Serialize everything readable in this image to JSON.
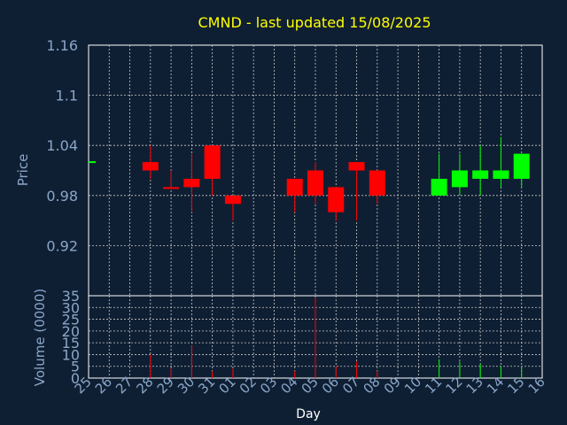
{
  "chart_data": {
    "type": "candlestick",
    "title": "CMND - last updated 15/08/2025",
    "xlabel": "Day",
    "ylabel": "Price",
    "ylabel2": "Volume (0000)",
    "grid": true,
    "ylim": [
      0.86,
      1.16
    ],
    "yticks": [
      "1.16",
      "1.1",
      "1.04",
      "0.98",
      "0.92"
    ],
    "ylim2": [
      0,
      35
    ],
    "yticks2": [
      "35",
      "30",
      "25",
      "20",
      "15",
      "10",
      "5",
      "0"
    ],
    "x": [
      "25",
      "26",
      "27",
      "28",
      "29",
      "30",
      "31",
      "01",
      "02",
      "03",
      "04",
      "05",
      "06",
      "07",
      "08",
      "09",
      "10",
      "11",
      "12",
      "13",
      "14",
      "15",
      "16"
    ],
    "candles": [
      {
        "day": "25",
        "open": 1.02,
        "high": 1.02,
        "low": 1.02,
        "close": 1.02,
        "volume": 0,
        "color": "flat"
      },
      {
        "day": "28",
        "open": 1.02,
        "high": 1.04,
        "low": 1.0,
        "close": 1.01,
        "volume": 10,
        "color": "down"
      },
      {
        "day": "29",
        "open": 0.99,
        "high": 1.01,
        "low": 0.99,
        "close": 0.99,
        "volume": 4,
        "color": "down"
      },
      {
        "day": "30",
        "open": 1.0,
        "high": 1.03,
        "low": 0.96,
        "close": 0.99,
        "volume": 14,
        "color": "down"
      },
      {
        "day": "31",
        "open": 1.04,
        "high": 1.04,
        "low": 0.98,
        "close": 1.0,
        "volume": 3,
        "color": "down"
      },
      {
        "day": "01",
        "open": 0.98,
        "high": 0.98,
        "low": 0.95,
        "close": 0.97,
        "volume": 4,
        "color": "down"
      },
      {
        "day": "04",
        "open": 1.0,
        "high": 1.0,
        "low": 0.96,
        "close": 0.98,
        "volume": 3,
        "color": "down"
      },
      {
        "day": "05",
        "open": 1.01,
        "high": 1.02,
        "low": 0.97,
        "close": 0.98,
        "volume": 34,
        "color": "down"
      },
      {
        "day": "06",
        "open": 0.99,
        "high": 0.99,
        "low": 0.95,
        "close": 0.96,
        "volume": 5,
        "color": "down"
      },
      {
        "day": "07",
        "open": 1.02,
        "high": 1.02,
        "low": 0.95,
        "close": 1.01,
        "volume": 7,
        "color": "down"
      },
      {
        "day": "08",
        "open": 1.01,
        "high": 1.01,
        "low": 0.97,
        "close": 0.98,
        "volume": 3,
        "color": "down"
      },
      {
        "day": "11",
        "open": 0.98,
        "high": 1.03,
        "low": 0.98,
        "close": 1.0,
        "volume": 8,
        "color": "up"
      },
      {
        "day": "12",
        "open": 0.99,
        "high": 1.03,
        "low": 0.98,
        "close": 1.01,
        "volume": 7,
        "color": "up"
      },
      {
        "day": "13",
        "open": 1.0,
        "high": 1.04,
        "low": 0.98,
        "close": 1.01,
        "volume": 6,
        "color": "up"
      },
      {
        "day": "14",
        "open": 1.0,
        "high": 1.05,
        "low": 0.99,
        "close": 1.01,
        "volume": 5,
        "color": "up"
      },
      {
        "day": "15",
        "open": 1.0,
        "high": 1.03,
        "low": 0.99,
        "close": 1.03,
        "volume": 5,
        "color": "up"
      }
    ]
  },
  "colors": {
    "background": "#0f1f33",
    "title": "#ffff00",
    "axis_text": "#8aa6c8",
    "grid": "#c8c8c8",
    "up": "#00ff00",
    "down": "#ff0000",
    "flat": "#00ff00"
  }
}
